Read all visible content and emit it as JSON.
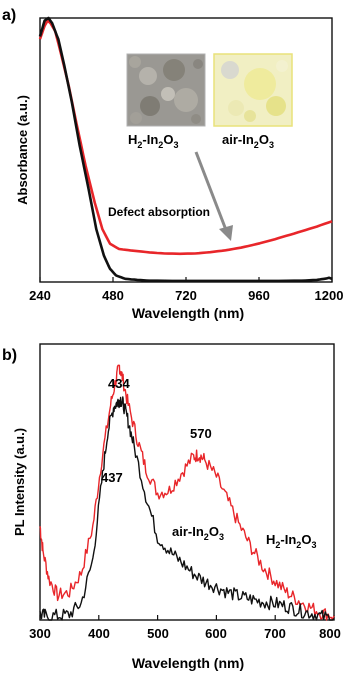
{
  "chart_data": [
    {
      "type": "line",
      "panel_label": "a)",
      "xlabel": "Wavelength (nm)",
      "ylabel": "Absorbance (a.u.)",
      "xlim": [
        240,
        1200
      ],
      "ylim": [
        0,
        1
      ],
      "xticks": [
        "240",
        "480",
        "720",
        "960",
        "1200"
      ],
      "grid": false,
      "series": [
        {
          "name": "H2-In2O3",
          "color": "#e8262a",
          "x": [
            240,
            255,
            265,
            275,
            290,
            310,
            335,
            360,
            390,
            420,
            445,
            470,
            500,
            550,
            600,
            650,
            700,
            750,
            800,
            850,
            900,
            950,
            1000,
            1050,
            1100,
            1150,
            1200
          ],
          "y": [
            0.92,
            0.97,
            0.99,
            0.98,
            0.95,
            0.86,
            0.74,
            0.6,
            0.44,
            0.3,
            0.2,
            0.145,
            0.125,
            0.118,
            0.112,
            0.108,
            0.107,
            0.108,
            0.113,
            0.12,
            0.13,
            0.143,
            0.158,
            0.175,
            0.192,
            0.21,
            0.23
          ]
        },
        {
          "name": "air-In2O3",
          "color": "#111111",
          "x": [
            240,
            255,
            268,
            280,
            300,
            320,
            345,
            370,
            400,
            425,
            450,
            470,
            490,
            520,
            560,
            600,
            700,
            800,
            900,
            1000,
            1100,
            1150,
            1180,
            1190,
            1200
          ],
          "y": [
            0.93,
            0.99,
            1.0,
            0.98,
            0.92,
            0.82,
            0.68,
            0.52,
            0.35,
            0.2,
            0.1,
            0.05,
            0.025,
            0.012,
            0.008,
            0.005,
            0.004,
            0.004,
            0.004,
            0.004,
            0.005,
            0.008,
            0.013,
            0.016,
            0.012
          ]
        }
      ],
      "annotations": {
        "defect": "Defect absorption",
        "label_h2": "H",
        "label_h2_sub": "2",
        "label_h2_rest": "-In",
        "label_h2_sub2": "2",
        "label_h2_o": "O",
        "label_h2_sub3": "3",
        "label_air": "air-In",
        "label_air_sub": "2",
        "label_air_o": "O",
        "label_air_sub2": "3"
      }
    },
    {
      "type": "line",
      "panel_label": "b)",
      "xlabel": "Wavelength (nm)",
      "ylabel": "PL Intensity (a.u.)",
      "xlim": [
        300,
        800
      ],
      "ylim": [
        0,
        1
      ],
      "xticks": [
        "300",
        "400",
        "500",
        "600",
        "700",
        "800"
      ],
      "grid": false,
      "series": [
        {
          "name": "H2-In2O3",
          "color": "#e8262a",
          "x": [
            300,
            305,
            315,
            330,
            350,
            370,
            390,
            405,
            420,
            430,
            435,
            440,
            450,
            465,
            480,
            500,
            520,
            540,
            560,
            570,
            580,
            600,
            620,
            640,
            660,
            680,
            700,
            720,
            740,
            760,
            780,
            800
          ],
          "y": [
            0.34,
            0.25,
            0.15,
            0.09,
            0.1,
            0.17,
            0.34,
            0.58,
            0.78,
            0.88,
            0.92,
            0.88,
            0.78,
            0.66,
            0.55,
            0.46,
            0.47,
            0.53,
            0.59,
            0.6,
            0.58,
            0.52,
            0.43,
            0.34,
            0.26,
            0.19,
            0.14,
            0.1,
            0.07,
            0.045,
            0.025,
            0.015
          ]
        },
        {
          "name": "air-In2O3",
          "color": "#111111",
          "x": [
            300,
            310,
            330,
            350,
            370,
            390,
            405,
            415,
            425,
            432,
            437,
            442,
            450,
            460,
            480,
            500,
            520,
            540,
            560,
            580,
            600,
            620,
            640,
            660,
            680,
            700,
            720,
            740,
            760,
            780,
            800
          ],
          "y": [
            0.02,
            0.015,
            0.015,
            0.02,
            0.06,
            0.22,
            0.5,
            0.68,
            0.77,
            0.79,
            0.8,
            0.78,
            0.72,
            0.63,
            0.45,
            0.3,
            0.25,
            0.21,
            0.17,
            0.14,
            0.12,
            0.1,
            0.085,
            0.075,
            0.065,
            0.06,
            0.05,
            0.035,
            0.025,
            0.012,
            0.005
          ]
        }
      ],
      "annotations": {
        "peak_434": "434",
        "peak_437": "437",
        "peak_570": "570",
        "air_label": "air-In",
        "air_sub1": "2",
        "air_o": "O",
        "air_sub2": "3",
        "h2_label": "H",
        "h2_sub1": "2",
        "h2_rest": "-In",
        "h2_sub2": "2",
        "h2_o": "O",
        "h2_sub3": "3"
      }
    }
  ],
  "colors": {
    "red": "#e8262a",
    "black": "#111111",
    "arrow": "#8a8a8a",
    "photo_h2_frame": "#b0b0b0",
    "photo_air_frame": "#e9e27a"
  }
}
